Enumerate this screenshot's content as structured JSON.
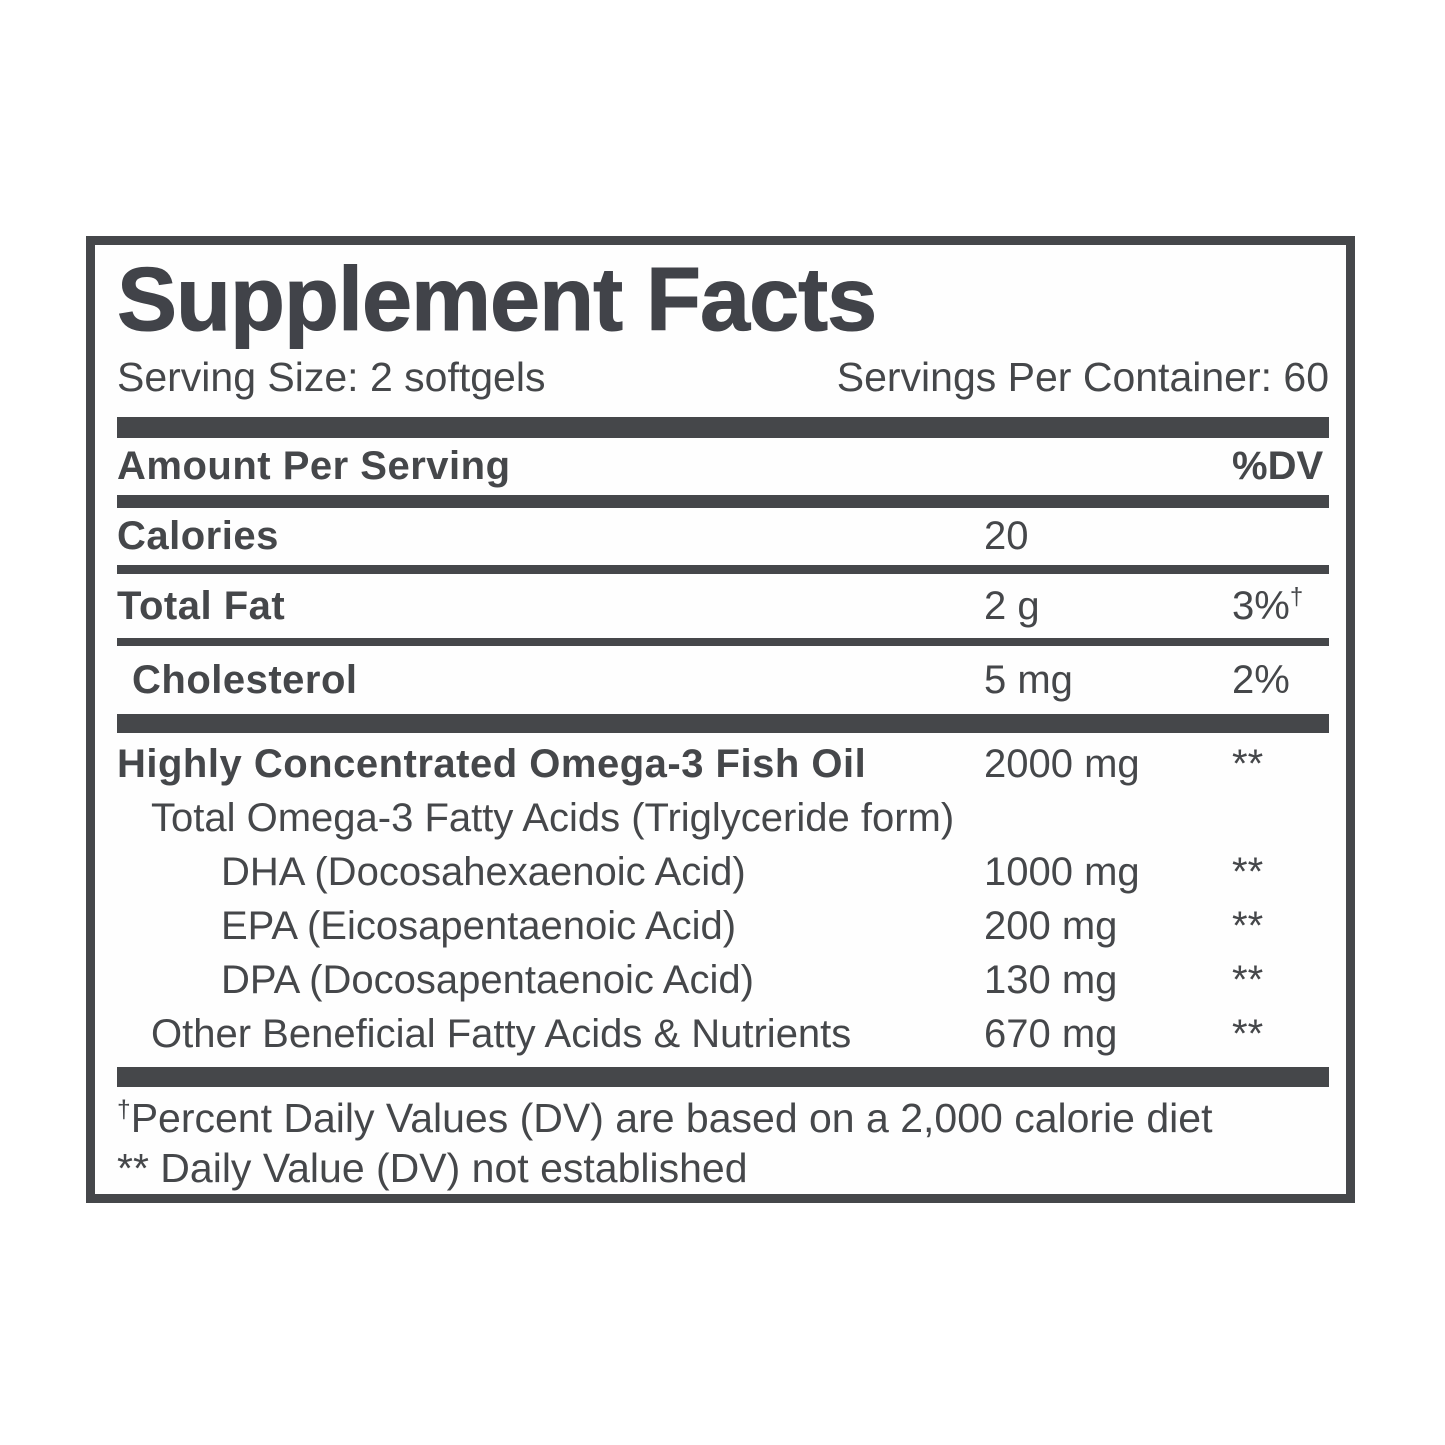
{
  "label": {
    "title": "Supplement Facts",
    "serving_size": "Serving Size: 2 softgels",
    "servings_per_container": "Servings Per Container: 60",
    "header": {
      "amount_per_serving": "Amount Per Serving",
      "dv": "%DV"
    },
    "rows": [
      {
        "name": "Calories",
        "amount": "20",
        "dv": "",
        "dv_sup": ""
      },
      {
        "name": "Total Fat",
        "amount": "2 g",
        "dv": "3%",
        "dv_sup": "†"
      },
      {
        "name": "Cholesterol",
        "amount": "5 mg",
        "dv": "2%",
        "dv_sup": ""
      }
    ],
    "omega_rows": [
      {
        "name": "Highly Concentrated Omega-3 Fish Oil",
        "amount": "2000 mg",
        "dv": "**"
      },
      {
        "name": "Total Omega-3 Fatty Acids (Triglyceride form)",
        "amount": "",
        "dv": ""
      },
      {
        "name": "DHA (Docosahexaenoic Acid)",
        "amount": "1000 mg",
        "dv": "**"
      },
      {
        "name": "EPA (Eicosapentaenoic Acid)",
        "amount": "200 mg",
        "dv": "**"
      },
      {
        "name": "DPA (Docosapentaenoic Acid)",
        "amount": "130 mg",
        "dv": "**"
      },
      {
        "name": "Other Beneficial Fatty Acids & Nutrients",
        "amount": "670 mg",
        "dv": "**"
      }
    ],
    "footnotes": [
      {
        "sup": "†",
        "text": "Percent Daily Values (DV) are based on a 2,000 calorie diet"
      },
      {
        "sup": "",
        "text": "** Daily Value (DV) not established"
      }
    ],
    "colors": {
      "ink": "#45474a",
      "background": "#ffffff"
    }
  }
}
